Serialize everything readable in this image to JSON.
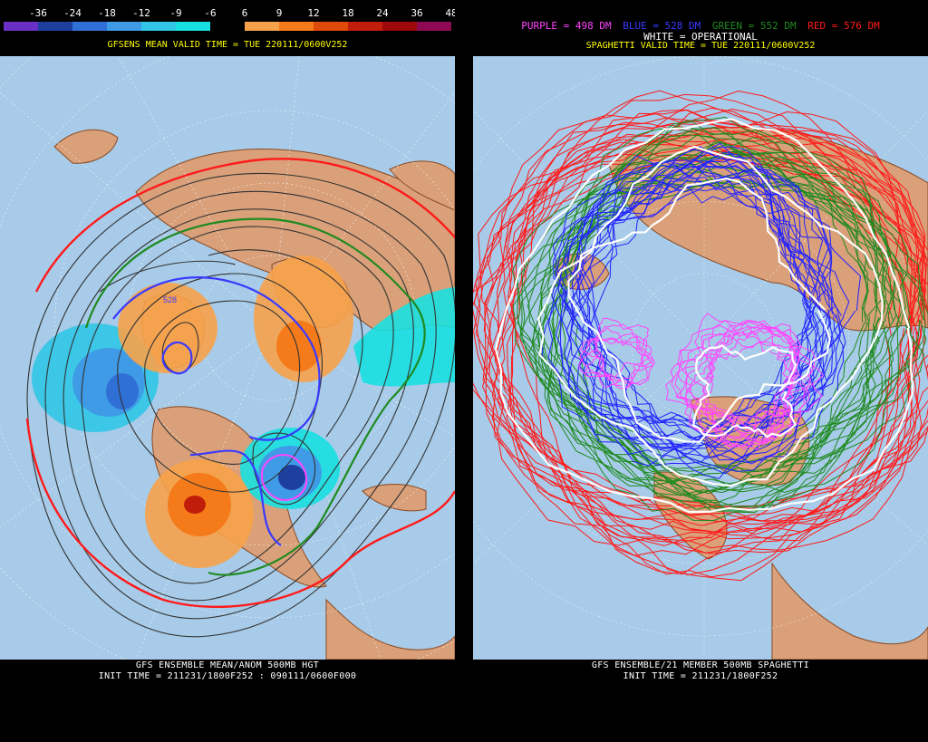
{
  "left": {
    "colorbar": {
      "ticks": [
        "-36",
        "-24",
        "-18",
        "-12",
        "-9",
        "-6",
        "6",
        "9",
        "12",
        "18",
        "24",
        "36",
        "48"
      ],
      "colors": [
        "#6a2fc4",
        "#1d3f9e",
        "#2f6fd6",
        "#3f9be6",
        "#31c6e6",
        "#18e0e0",
        "#000000",
        "#f7a24a",
        "#f57a1a",
        "#e04a0a",
        "#c01e0a",
        "#9e0a0a",
        "#8e0a55"
      ]
    },
    "valid_time": "GFSENS MEAN VALID TIME = TUE 220111/0600V252",
    "contour_label": "528",
    "caption_line1": "GFS ENSEMBLE MEAN/ANOM 500MB HGT",
    "caption_line2": "INIT TIME = 211231/1800F252 : 090111/0600F000"
  },
  "right": {
    "legend": {
      "purple": "PURPLE = 498 DM",
      "blue": "BLUE = 528 DM",
      "green": "GREEN = 552 DM",
      "red": "RED = 576 DM",
      "white": "WHITE = OPERATIONAL",
      "colors": {
        "purple": "#ff44ff",
        "blue": "#3a3aff",
        "green": "#1f8a1f",
        "red": "#ff1a1a",
        "white": "#ffffff"
      }
    },
    "valid_time": "SPAGHETTI VALID TIME = TUE 220111/0600V252",
    "caption_line1": "GFS ENSEMBLE/21 MEMBER 500MB SPAGHETTI",
    "caption_line2": "INIT TIME = 211231/1800F252"
  },
  "colors": {
    "ocean": "#a7cbe8",
    "land": "#d9a07a",
    "border": "#8a4a22",
    "grid": "#ffffff"
  }
}
